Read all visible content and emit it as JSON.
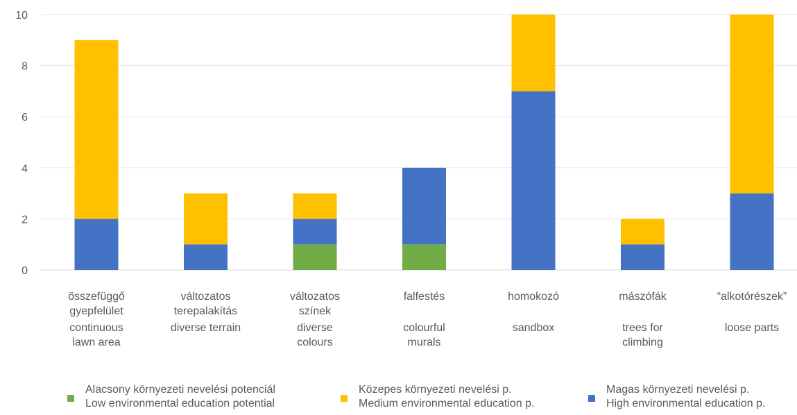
{
  "chart_data": {
    "type": "bar",
    "stacked": true,
    "categories": [
      {
        "hu": [
          "összefüggő",
          "gyepfelület"
        ],
        "en": [
          "continuous",
          "lawn area"
        ]
      },
      {
        "hu": [
          "változatos",
          "terepalakítás"
        ],
        "en": [
          "diverse terrain"
        ]
      },
      {
        "hu": [
          "változatos",
          "színek"
        ],
        "en": [
          "diverse",
          "colours"
        ]
      },
      {
        "hu": [
          "falfestés"
        ],
        "en": [
          "colourful",
          "murals"
        ]
      },
      {
        "hu": [
          "homokozó"
        ],
        "en": [
          "sandbox"
        ]
      },
      {
        "hu": [
          "mászófák"
        ],
        "en": [
          "trees for",
          "climbing"
        ]
      },
      {
        "hu": [
          "“alkotórészek”"
        ],
        "en": [
          "loose parts"
        ]
      }
    ],
    "series": [
      {
        "key": "low",
        "name": [
          "Alacsony környezeti nevelési potenciál",
          "Low environmental education potential"
        ],
        "color": "#70ad47",
        "values": [
          0,
          0,
          1,
          1,
          0,
          0,
          0
        ]
      },
      {
        "key": "high",
        "name": [
          "Magas környezeti nevelési p.",
          "High environmental education p."
        ],
        "color": "#4472c4",
        "values": [
          2,
          1,
          1,
          3,
          7,
          1,
          3
        ]
      },
      {
        "key": "medium",
        "name": [
          "Közepes környezeti nevelési p.",
          "Medium environmental education p."
        ],
        "color": "#ffc000",
        "values": [
          7,
          2,
          1,
          0,
          3,
          1,
          7
        ]
      }
    ],
    "ylim": [
      0,
      10
    ],
    "yticks": [
      0,
      2,
      4,
      6,
      8,
      10
    ],
    "grid": true,
    "legend_position": "bottom",
    "legend_order": [
      "low",
      "medium",
      "high"
    ],
    "title": "",
    "xlabel": "",
    "ylabel": ""
  }
}
